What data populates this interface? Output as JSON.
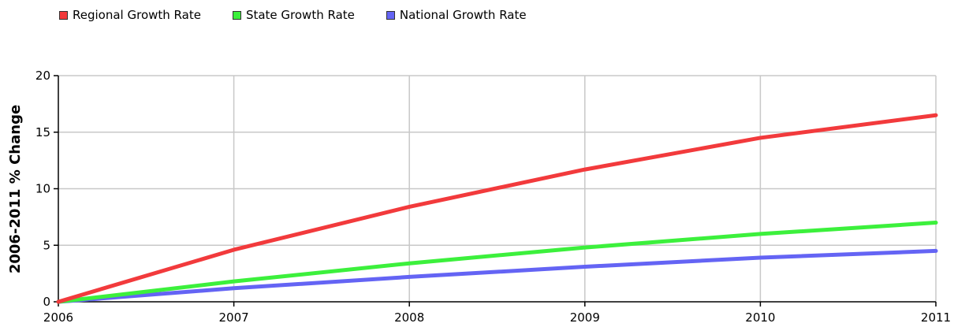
{
  "chart_data": {
    "type": "line",
    "x": [
      2006,
      2007,
      2008,
      2009,
      2010,
      2011
    ],
    "xlabel": "",
    "ylabel": "2006-2011 % Change",
    "ylim": [
      0,
      20
    ],
    "xlim": [
      2006,
      2011
    ],
    "y_ticks": [
      0,
      5,
      10,
      15,
      20
    ],
    "grid": true,
    "legend_position": "top-left",
    "series": [
      {
        "name": "Regional Growth Rate",
        "color": "#f23a3c",
        "values": [
          0,
          4.6,
          8.4,
          11.7,
          14.5,
          16.5
        ]
      },
      {
        "name": "State Growth Rate",
        "color": "#3cf03c",
        "values": [
          0,
          1.8,
          3.4,
          4.8,
          6.0,
          7.0
        ]
      },
      {
        "name": "National Growth Rate",
        "color": "#6464f4",
        "values": [
          0,
          1.2,
          2.2,
          3.1,
          3.9,
          4.5
        ]
      }
    ]
  }
}
